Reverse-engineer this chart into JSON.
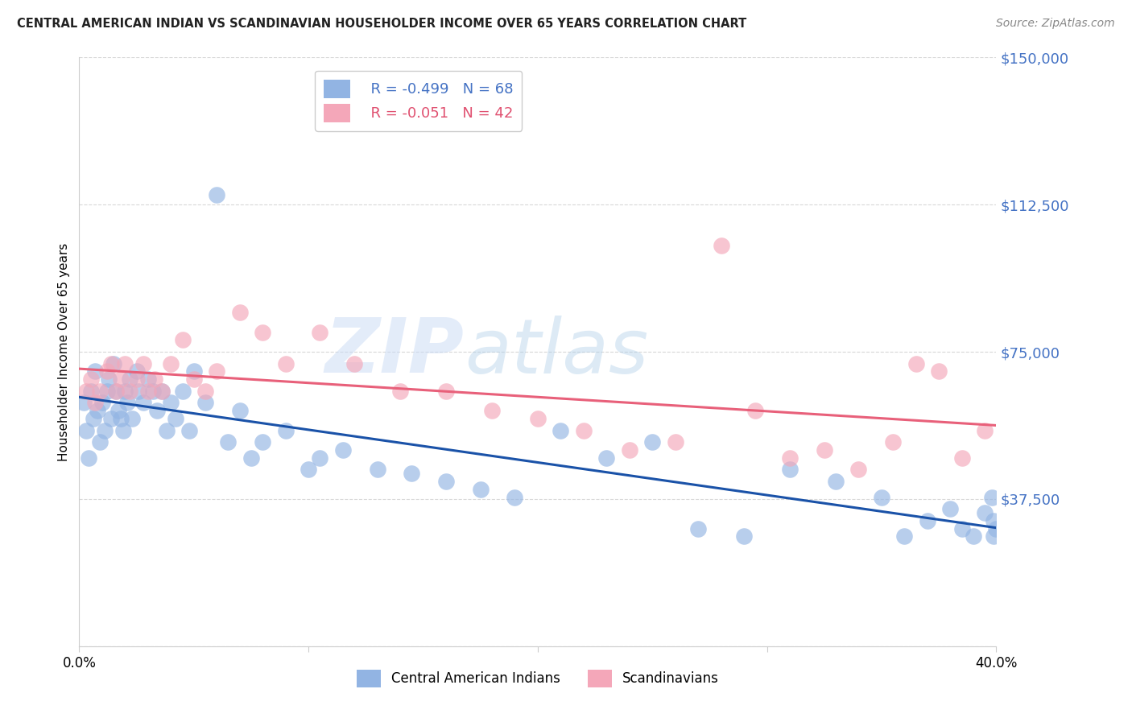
{
  "title": "CENTRAL AMERICAN INDIAN VS SCANDINAVIAN HOUSEHOLDER INCOME OVER 65 YEARS CORRELATION CHART",
  "source": "Source: ZipAtlas.com",
  "ylabel": "Householder Income Over 65 years",
  "xlim": [
    0.0,
    0.4
  ],
  "ylim": [
    0,
    150000
  ],
  "yticks": [
    0,
    37500,
    75000,
    112500,
    150000
  ],
  "ytick_labels": [
    "",
    "$37,500",
    "$75,000",
    "$112,500",
    "$150,000"
  ],
  "xticks": [
    0.0,
    0.1,
    0.2,
    0.3,
    0.4
  ],
  "xtick_labels": [
    "0.0%",
    "",
    "",
    "",
    "40.0%"
  ],
  "legend_blue_r": "R = -0.499",
  "legend_blue_n": "N = 68",
  "legend_pink_r": "R = -0.051",
  "legend_pink_n": "N = 42",
  "blue_color": "#92b4e3",
  "pink_color": "#f4a7b9",
  "blue_line_color": "#1a52a8",
  "pink_line_color": "#e8607a",
  "watermark_zip": "ZIP",
  "watermark_atlas": "atlas",
  "background_color": "#ffffff",
  "grid_color": "#d8d8d8",
  "blue_scatter_x": [
    0.002,
    0.003,
    0.004,
    0.005,
    0.006,
    0.007,
    0.008,
    0.009,
    0.01,
    0.011,
    0.012,
    0.013,
    0.014,
    0.015,
    0.016,
    0.017,
    0.018,
    0.019,
    0.02,
    0.021,
    0.022,
    0.023,
    0.025,
    0.026,
    0.028,
    0.03,
    0.032,
    0.034,
    0.036,
    0.038,
    0.04,
    0.042,
    0.045,
    0.048,
    0.05,
    0.055,
    0.06,
    0.065,
    0.07,
    0.075,
    0.08,
    0.09,
    0.1,
    0.105,
    0.115,
    0.13,
    0.145,
    0.16,
    0.175,
    0.19,
    0.21,
    0.23,
    0.25,
    0.27,
    0.29,
    0.31,
    0.33,
    0.35,
    0.36,
    0.37,
    0.38,
    0.385,
    0.39,
    0.395,
    0.398,
    0.399,
    0.399,
    0.4
  ],
  "blue_scatter_y": [
    62000,
    55000,
    48000,
    65000,
    58000,
    70000,
    60000,
    52000,
    62000,
    55000,
    65000,
    68000,
    58000,
    72000,
    65000,
    60000,
    58000,
    55000,
    65000,
    62000,
    68000,
    58000,
    70000,
    65000,
    62000,
    68000,
    65000,
    60000,
    65000,
    55000,
    62000,
    58000,
    65000,
    55000,
    70000,
    62000,
    115000,
    52000,
    60000,
    48000,
    52000,
    55000,
    45000,
    48000,
    50000,
    45000,
    44000,
    42000,
    40000,
    38000,
    55000,
    48000,
    52000,
    30000,
    28000,
    45000,
    42000,
    38000,
    28000,
    32000,
    35000,
    30000,
    28000,
    34000,
    38000,
    28000,
    32000,
    30000
  ],
  "pink_scatter_x": [
    0.003,
    0.005,
    0.007,
    0.009,
    0.012,
    0.014,
    0.016,
    0.018,
    0.02,
    0.022,
    0.025,
    0.028,
    0.03,
    0.033,
    0.036,
    0.04,
    0.045,
    0.05,
    0.055,
    0.06,
    0.07,
    0.08,
    0.09,
    0.105,
    0.12,
    0.14,
    0.16,
    0.18,
    0.2,
    0.22,
    0.24,
    0.26,
    0.28,
    0.295,
    0.31,
    0.325,
    0.34,
    0.355,
    0.365,
    0.375,
    0.385,
    0.395
  ],
  "pink_scatter_y": [
    65000,
    68000,
    62000,
    65000,
    70000,
    72000,
    65000,
    68000,
    72000,
    65000,
    68000,
    72000,
    65000,
    68000,
    65000,
    72000,
    78000,
    68000,
    65000,
    70000,
    85000,
    80000,
    72000,
    80000,
    72000,
    65000,
    65000,
    60000,
    58000,
    55000,
    50000,
    52000,
    102000,
    60000,
    48000,
    50000,
    45000,
    52000,
    72000,
    70000,
    48000,
    55000
  ]
}
